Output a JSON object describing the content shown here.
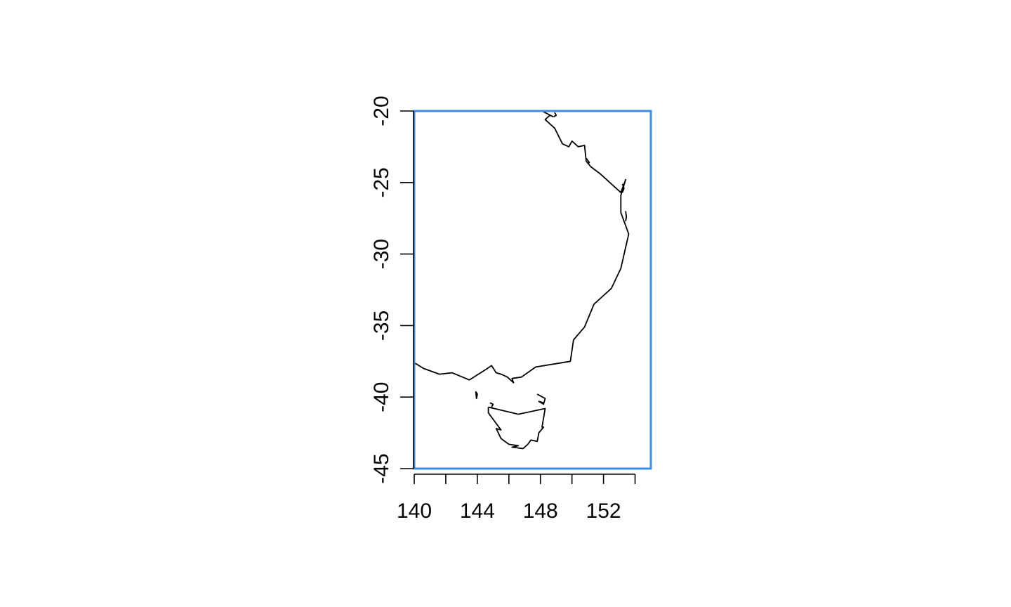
{
  "map": {
    "extent": {
      "lon_min": 140,
      "lon_max": 155,
      "lat_min": -45,
      "lat_max": -20
    },
    "bbox_color": "#3A8EE6",
    "coast_color": "#000000",
    "x_axis": {
      "ticks": [
        140,
        142,
        144,
        146,
        148,
        150,
        152,
        154
      ],
      "labels": [
        {
          "value": 140,
          "text": "140"
        },
        {
          "value": 144,
          "text": "144"
        },
        {
          "value": 148,
          "text": "148"
        },
        {
          "value": 152,
          "text": "152"
        }
      ]
    },
    "y_axis": {
      "ticks": [
        -20,
        -25,
        -30,
        -35,
        -40,
        -45
      ],
      "labels": [
        {
          "value": -20,
          "text": "-20"
        },
        {
          "value": -25,
          "text": "-25"
        },
        {
          "value": -30,
          "text": "-30"
        },
        {
          "value": -35,
          "text": "-35"
        },
        {
          "value": -40,
          "text": "-40"
        },
        {
          "value": -45,
          "text": "-45"
        }
      ]
    },
    "features": [
      {
        "name": "mainland-coastline",
        "points": [
          [
            140,
            -37.6
          ],
          [
            140.6,
            -38.0
          ],
          [
            141.6,
            -38.4
          ],
          [
            142.4,
            -38.3
          ],
          [
            143.5,
            -38.8
          ],
          [
            144.5,
            -38.1
          ],
          [
            144.9,
            -37.8
          ],
          [
            145.2,
            -38.3
          ],
          [
            145.5,
            -38.4
          ],
          [
            145.9,
            -38.6
          ],
          [
            146.3,
            -39.0
          ],
          [
            146.2,
            -38.7
          ],
          [
            146.8,
            -38.6
          ],
          [
            147.7,
            -37.9
          ],
          [
            149.9,
            -37.5
          ],
          [
            150.1,
            -36.0
          ],
          [
            150.8,
            -35.1
          ],
          [
            151.4,
            -33.5
          ],
          [
            152.5,
            -32.4
          ],
          [
            153.1,
            -31.0
          ],
          [
            153.6,
            -28.6
          ],
          [
            153.1,
            -27.1
          ],
          [
            153.1,
            -25.9
          ],
          [
            153.4,
            -24.8
          ],
          [
            153.1,
            -25.7
          ],
          [
            151.8,
            -24.4
          ],
          [
            151.2,
            -23.9
          ],
          [
            150.9,
            -23.5
          ],
          [
            150.8,
            -22.4
          ],
          [
            150.4,
            -22.5
          ],
          [
            150.0,
            -22.1
          ],
          [
            149.8,
            -22.5
          ],
          [
            149.4,
            -22.3
          ],
          [
            148.9,
            -21.2
          ],
          [
            148.3,
            -20.6
          ],
          [
            148.6,
            -20.3
          ],
          [
            148.8,
            -20.4
          ],
          [
            148.1,
            -20.0
          ]
        ]
      },
      {
        "name": "fraser-island",
        "points": [
          [
            153.2,
            -25.1
          ],
          [
            153.3,
            -25.4
          ],
          [
            153.2,
            -25.7
          ]
        ]
      },
      {
        "name": "moreton-island",
        "points": [
          [
            153.4,
            -27.0
          ],
          [
            153.45,
            -27.4
          ],
          [
            153.4,
            -27.7
          ]
        ]
      },
      {
        "name": "whitsunday-islands",
        "points": [
          [
            148.9,
            -20.1
          ],
          [
            149.0,
            -20.3
          ],
          [
            148.85,
            -20.4
          ]
        ]
      },
      {
        "name": "keppel-islet",
        "points": [
          [
            150.9,
            -23.3
          ],
          [
            151.1,
            -23.6
          ],
          [
            151.0,
            -23.7
          ]
        ]
      },
      {
        "name": "tasmania",
        "points": [
          [
            144.7,
            -40.7
          ],
          [
            146.6,
            -41.2
          ],
          [
            148.3,
            -40.8
          ],
          [
            148.1,
            -42.1
          ],
          [
            148.2,
            -42.1
          ],
          [
            147.9,
            -42.5
          ],
          [
            147.8,
            -43.1
          ],
          [
            147.4,
            -43.0
          ],
          [
            147.2,
            -43.3
          ],
          [
            146.9,
            -43.6
          ],
          [
            146.2,
            -43.5
          ],
          [
            146.6,
            -43.4
          ],
          [
            146.0,
            -43.3
          ],
          [
            145.5,
            -42.9
          ],
          [
            145.2,
            -42.2
          ],
          [
            145.5,
            -42.3
          ],
          [
            144.7,
            -41.1
          ],
          [
            144.7,
            -40.7
          ]
        ]
      },
      {
        "name": "king-island",
        "points": [
          [
            143.9,
            -39.6
          ],
          [
            144.0,
            -39.8
          ],
          [
            143.95,
            -40.1
          ],
          [
            143.9,
            -39.6
          ]
        ]
      },
      {
        "name": "hunter-island",
        "points": [
          [
            144.8,
            -40.4
          ],
          [
            145.0,
            -40.5
          ],
          [
            144.9,
            -40.7
          ]
        ]
      },
      {
        "name": "flinders-island",
        "points": [
          [
            147.8,
            -39.8
          ],
          [
            148.3,
            -40.1
          ],
          [
            148.2,
            -40.5
          ],
          [
            147.9,
            -40.3
          ],
          [
            148.2,
            -40.4
          ]
        ]
      }
    ]
  }
}
